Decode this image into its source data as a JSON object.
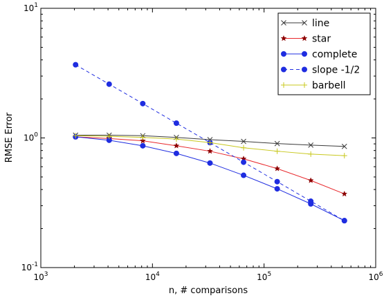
{
  "chart_data": {
    "type": "line",
    "xscale": "log",
    "yscale": "log",
    "xlim": [
      1000,
      1000000
    ],
    "ylim": [
      0.1,
      10
    ],
    "xlabel": "n, # comparisons",
    "ylabel": "RMSE Error",
    "grid": false,
    "legend_position": "top-right",
    "x_ticks": [
      {
        "value": 1000,
        "base": "10",
        "exp": "3"
      },
      {
        "value": 10000,
        "base": "10",
        "exp": "4"
      },
      {
        "value": 100000,
        "base": "10",
        "exp": "5"
      },
      {
        "value": 1000000,
        "base": "10",
        "exp": "6"
      }
    ],
    "y_ticks": [
      {
        "value": 0.1,
        "base": "10",
        "exp": "-1"
      },
      {
        "value": 1,
        "base": "10",
        "exp": "0"
      },
      {
        "value": 10,
        "base": "10",
        "exp": "1"
      }
    ],
    "series": [
      {
        "name": "line",
        "color": "#3a3a3a",
        "marker": "x",
        "dashed": false,
        "x": [
          2048,
          4096,
          8192,
          16384,
          32768,
          65536,
          131072,
          262144,
          524288
        ],
        "y": [
          1.05,
          1.05,
          1.04,
          1.01,
          0.97,
          0.94,
          0.905,
          0.88,
          0.86
        ]
      },
      {
        "name": "star",
        "color": "#e8262a",
        "marker": "star",
        "dashed": false,
        "x": [
          2048,
          4096,
          8192,
          16384,
          32768,
          65536,
          131072,
          262144,
          524288
        ],
        "y": [
          1.02,
          0.99,
          0.95,
          0.87,
          0.79,
          0.69,
          0.58,
          0.47,
          0.37
        ]
      },
      {
        "name": "complete",
        "color": "#1f2de0",
        "marker": "circle",
        "dashed": false,
        "x": [
          2048,
          4096,
          8192,
          16384,
          32768,
          65536,
          131072,
          262144,
          524288
        ],
        "y": [
          1.02,
          0.96,
          0.87,
          0.76,
          0.64,
          0.515,
          0.405,
          0.31,
          0.23
        ]
      },
      {
        "name": "slope -1/2",
        "color": "#1f2de0",
        "marker": "circle",
        "dashed": true,
        "x": [
          2048,
          4096,
          8192,
          16384,
          32768,
          65536,
          131072,
          262144,
          524288
        ],
        "y": [
          3.67,
          2.6,
          1.84,
          1.3,
          0.92,
          0.65,
          0.46,
          0.325,
          0.23
        ]
      },
      {
        "name": "barbell",
        "color": "#c8c81e",
        "marker": "plus",
        "dashed": false,
        "x": [
          2048,
          4096,
          8192,
          16384,
          32768,
          65536,
          131072,
          262144,
          524288
        ],
        "y": [
          1.04,
          1.03,
          1.01,
          0.98,
          0.92,
          0.84,
          0.79,
          0.75,
          0.73
        ]
      }
    ]
  }
}
